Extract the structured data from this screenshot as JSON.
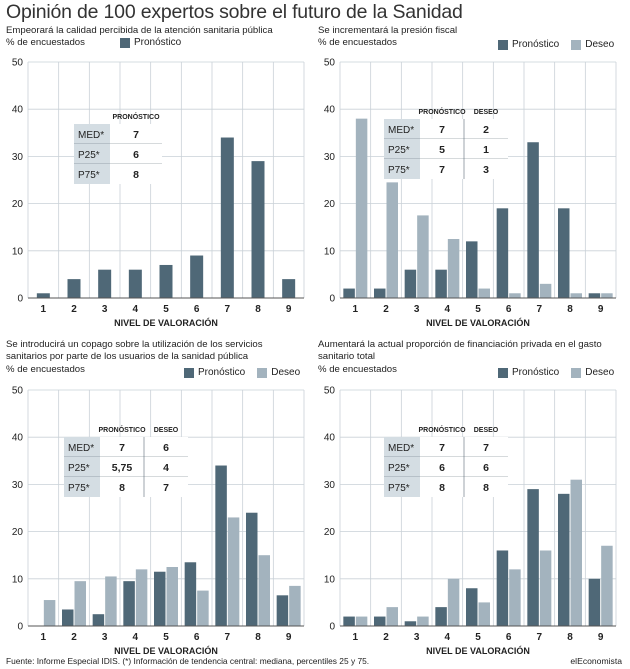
{
  "page": {
    "title": "Opinión de 100 expertos sobre el futuro de la Sanidad",
    "footer": "Fuente: Informe Especial IDIS. (*) Información de tendencia central: mediana, percentiles 25 y 75.",
    "brand": "elEconomista"
  },
  "colors": {
    "pronostico": "#4f6877",
    "deseo": "#a3b3be",
    "grid": "#c9d1d7",
    "table_bg": "#d4dde3",
    "table_line": "#5a6b76"
  },
  "chart_data": [
    {
      "type": "bar",
      "title": "Empeorará la calidad percibida de la atención sanitaria pública",
      "ylabel": "% de encuestados",
      "xlabel": "NIVEL DE VALORACIÓN",
      "categories": [
        "1",
        "2",
        "3",
        "4",
        "5",
        "6",
        "7",
        "8",
        "9"
      ],
      "yticks": [
        "0",
        "10",
        "20",
        "30",
        "40",
        "50"
      ],
      "ylim": [
        0,
        50
      ],
      "grid": true,
      "legend": [
        "Pronóstico"
      ],
      "series": [
        {
          "name": "Pronóstico",
          "values": [
            1,
            4,
            6,
            6,
            7,
            9,
            34,
            29,
            4
          ]
        }
      ],
      "table": {
        "headers": [
          "PRONÓSTICO"
        ],
        "rows": [
          {
            "label": "MED*",
            "values": [
              "7"
            ]
          },
          {
            "label": "P25*",
            "values": [
              "6"
            ]
          },
          {
            "label": "P75*",
            "values": [
              "8"
            ]
          }
        ]
      }
    },
    {
      "type": "bar",
      "title": "Se incrementará la presión fiscal",
      "ylabel": "% de encuestados",
      "xlabel": "NIVEL DE VALORACIÓN",
      "categories": [
        "1",
        "2",
        "3",
        "4",
        "5",
        "6",
        "7",
        "8",
        "9"
      ],
      "yticks": [
        "0",
        "10",
        "20",
        "30",
        "40",
        "50"
      ],
      "ylim": [
        0,
        50
      ],
      "grid": true,
      "legend": [
        "Pronóstico",
        "Deseo"
      ],
      "series": [
        {
          "name": "Pronóstico",
          "values": [
            2,
            2,
            6,
            6,
            12,
            19,
            33,
            19,
            1
          ]
        },
        {
          "name": "Deseo",
          "values": [
            38,
            24.5,
            17.5,
            12.5,
            2,
            1,
            3,
            1,
            1
          ]
        }
      ],
      "table": {
        "headers": [
          "PRONÓSTICO",
          "DESEO"
        ],
        "rows": [
          {
            "label": "MED*",
            "values": [
              "7",
              "2"
            ]
          },
          {
            "label": "P25*",
            "values": [
              "5",
              "1"
            ]
          },
          {
            "label": "P75*",
            "values": [
              "7",
              "3"
            ]
          }
        ]
      }
    },
    {
      "type": "bar",
      "title": "Se introducirá un copago sobre la utilización de los servicios sanitarios por parte de los usuarios de la sanidad pública",
      "ylabel": "% de encuestados",
      "xlabel": "NIVEL DE VALORACIÓN",
      "categories": [
        "1",
        "2",
        "3",
        "4",
        "5",
        "6",
        "7",
        "8",
        "9"
      ],
      "yticks": [
        "0",
        "10",
        "20",
        "30",
        "40",
        "50"
      ],
      "ylim": [
        0,
        50
      ],
      "grid": true,
      "legend": [
        "Pronóstico",
        "Deseo"
      ],
      "series": [
        {
          "name": "Pronóstico",
          "values": [
            0,
            3.5,
            2.5,
            9.5,
            11.5,
            13.5,
            34,
            24,
            6.5
          ]
        },
        {
          "name": "Deseo",
          "values": [
            5.5,
            9.5,
            10.5,
            12,
            12.5,
            7.5,
            23,
            15,
            8.5
          ]
        }
      ],
      "table": {
        "headers": [
          "PRONÓSTICO",
          "DESEO"
        ],
        "rows": [
          {
            "label": "MED*",
            "values": [
              "7",
              "6"
            ]
          },
          {
            "label": "P25*",
            "values": [
              "5,75",
              "4"
            ]
          },
          {
            "label": "P75*",
            "values": [
              "8",
              "7"
            ]
          }
        ]
      }
    },
    {
      "type": "bar",
      "title": "Aumentará la actual proporción de financiación privada en el gasto sanitario total",
      "ylabel": "% de encuestados",
      "xlabel": "NIVEL DE VALORACIÓN",
      "categories": [
        "1",
        "2",
        "3",
        "4",
        "5",
        "6",
        "7",
        "8",
        "9"
      ],
      "yticks": [
        "0",
        "10",
        "20",
        "30",
        "40",
        "50"
      ],
      "ylim": [
        0,
        50
      ],
      "grid": true,
      "legend": [
        "Pronóstico",
        "Deseo"
      ],
      "series": [
        {
          "name": "Pronóstico",
          "values": [
            2,
            2,
            1,
            4,
            8,
            16,
            29,
            28,
            10
          ]
        },
        {
          "name": "Deseo",
          "values": [
            2,
            4,
            2,
            10,
            5,
            12,
            16,
            31,
            17
          ]
        }
      ],
      "table": {
        "headers": [
          "PRONÓSTICO",
          "DESEO"
        ],
        "rows": [
          {
            "label": "MED*",
            "values": [
              "7",
              "7"
            ]
          },
          {
            "label": "P25*",
            "values": [
              "6",
              "6"
            ]
          },
          {
            "label": "P75*",
            "values": [
              "8",
              "8"
            ]
          }
        ]
      }
    }
  ]
}
